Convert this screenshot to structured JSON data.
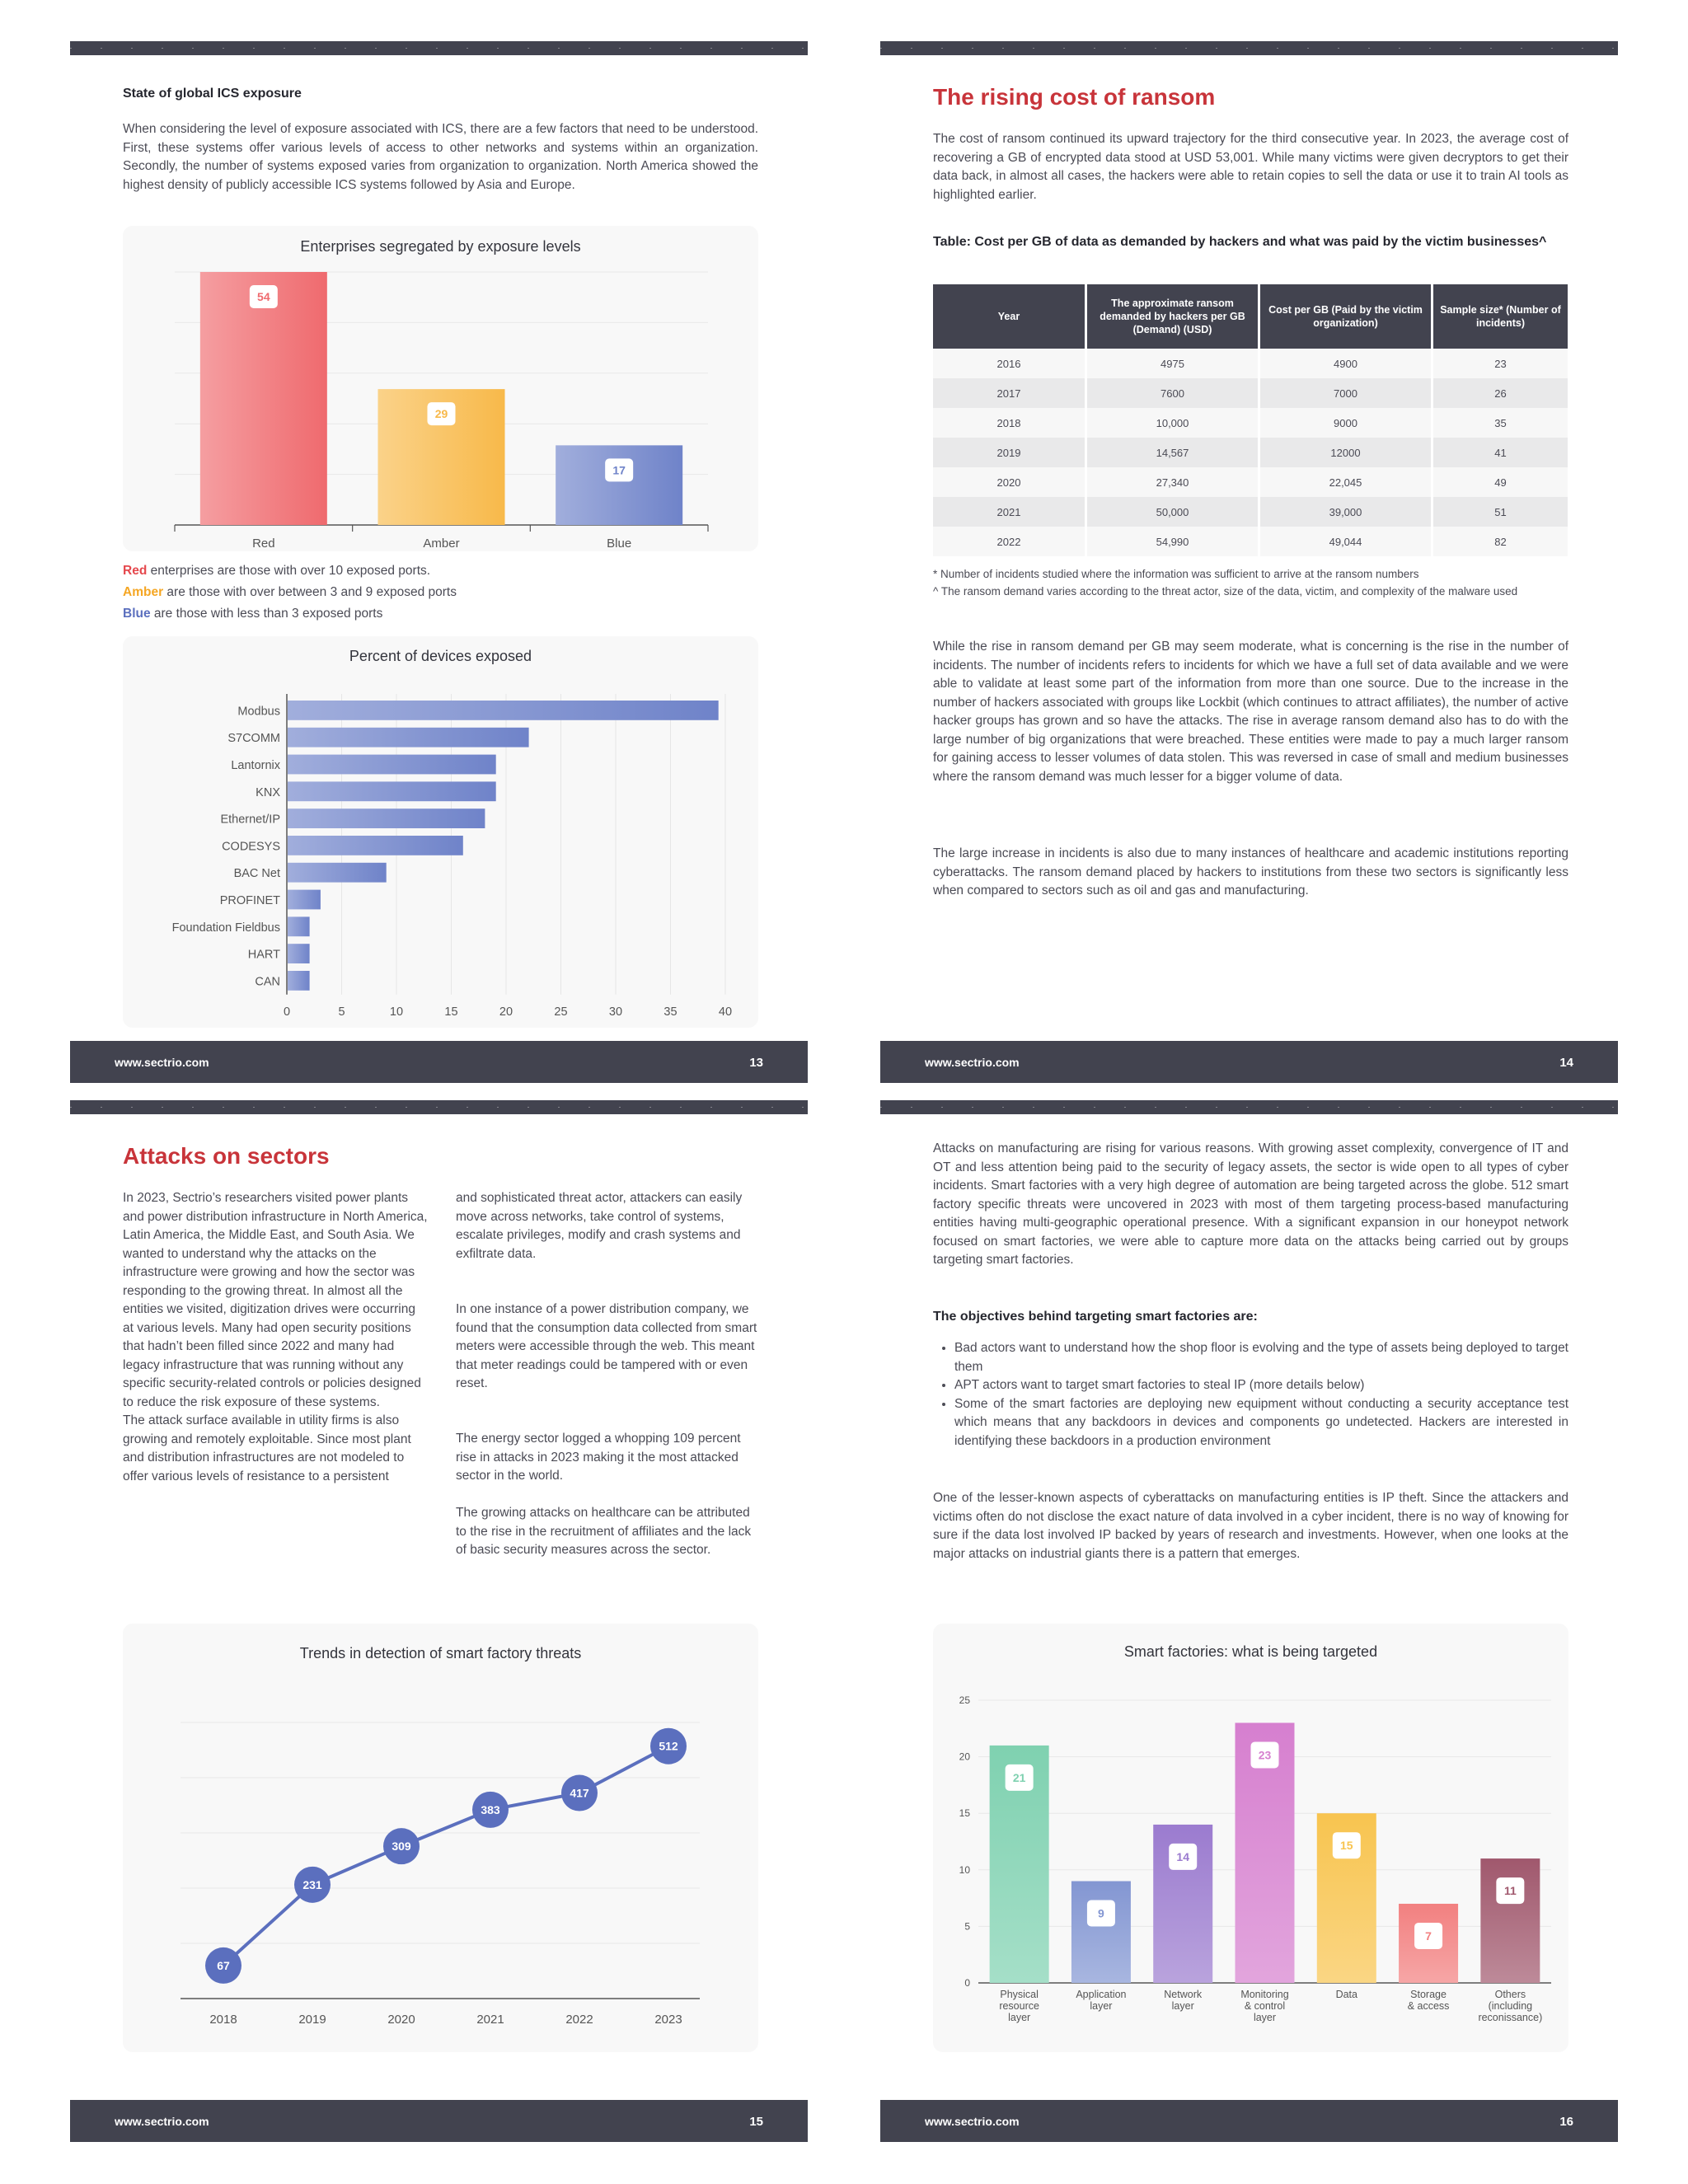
{
  "footer_url": "www.sectrio.com",
  "p13": {
    "page_num": "13",
    "subheading": "State of global ICS exposure",
    "intro": "When considering the level of exposure associated with ICS, there are a few factors that need to be understood. First, these systems offer various levels of access to other networks and systems within an organization. Secondly, the number of systems exposed varies from organization to organization. North America showed the highest density of publicly accessible ICS systems followed by Asia and Europe.",
    "legend": [
      {
        "word": "Red",
        "rest": " enterprises are those with over 10 exposed ports.",
        "color": "#e5484d"
      },
      {
        "word": "Amber",
        "rest": " are those with over between 3 and 9 exposed ports",
        "color": "#f5a623"
      },
      {
        "word": "Blue",
        "rest": " are those with less than 3 exposed ports",
        "color": "#5b6fbe"
      }
    ]
  },
  "p14": {
    "page_num": "14",
    "heading": "The rising cost of ransom",
    "intro": "The cost of ransom continued its upward trajectory for the third consecutive year. In 2023, the average cost of recovering a GB of encrypted data stood at USD 53,001. While many victims were given decryptors to get their data back, in almost all cases, the hackers were able to retain copies to sell the data or use it to train AI tools as highlighted earlier.",
    "table_caption": "Table: Cost per GB of data as demanded by hackers and what was paid by the victim businesses^",
    "table_headers": [
      "Year",
      "The approximate ransom demanded by hackers per GB (Demand) (USD)",
      "Cost per GB (Paid by the victim organization)",
      "Sample size* (Number of incidents)"
    ],
    "table_rows": [
      [
        "2016",
        "4975",
        "4900",
        "23"
      ],
      [
        "2017",
        "7600",
        "7000",
        "26"
      ],
      [
        "2018",
        "10,000",
        "9000",
        "35"
      ],
      [
        "2019",
        "14,567",
        "12000",
        "41"
      ],
      [
        "2020",
        "27,340",
        "22,045",
        "49"
      ],
      [
        "2021",
        "50,000",
        "39,000",
        "51"
      ],
      [
        "2022",
        "54,990",
        "49,044",
        "82"
      ]
    ],
    "note1": "* Number of incidents studied where the information was sufficient to arrive at the ransom numbers",
    "note2": "^ The ransom demand varies according to the threat actor, size of the data, victim, and complexity of the malware used",
    "para1": "While the rise in ransom demand per GB may seem moderate, what is concerning is the rise in the number of incidents. The number of incidents refers to incidents for which we have a full set of data available and we were able to validate at least some part of the information from more than one source. Due to the increase in the number of hackers associated with groups like Lockbit (which continues to attract affiliates), the number of active hacker groups has grown and so have the attacks. The rise in average ransom demand also has to do with the large number of big organizations that were breached. These entities were made to pay a much larger ransom for gaining access to lesser volumes of data stolen. This was reversed in case of small and medium businesses where the ransom demand was much lesser for a bigger volume of data.",
    "para2": "The large increase in incidents is also due to many instances of healthcare and academic institutions reporting cyberattacks. The ransom demand placed by hackers to institutions from these two sectors is significantly less when compared to sectors such as oil and gas and manufacturing."
  },
  "p15": {
    "page_num": "15",
    "heading": "Attacks on sectors",
    "col1_p1": "In 2023, Sectrio’s researchers visited power plants and power distribution infrastructure in North America, Latin America, the Middle East, and South Asia. We wanted to understand why the attacks on the infrastructure were growing and how the sector was responding to the growing threat. In almost all the entities we visited, digitization drives were occurring at various levels. Many had open security positions that hadn’t been filled since 2022 and many had legacy infrastructure that was running without any specific security-related controls or policies designed to reduce the risk exposure of these systems.",
    "col1_p2": "The attack surface available in utility firms is also growing and remotely exploitable. Since most plant and distribution infrastructures are not modeled to offer various levels of resistance to a persistent",
    "col2_p1": "and sophisticated threat actor, attackers can easily move across networks, take control of systems, escalate privileges, modify and crash systems and exfiltrate data.",
    "col2_p2": "In one instance of a power distribution company, we found that the consumption data collected from smart meters were accessible through the web. This meant that meter readings could be tampered with or even reset.",
    "col2_p3": "The energy sector logged a whopping 109 percent rise in attacks in 2023 making it the most attacked sector in the world.",
    "col2_p4": "The growing attacks on healthcare can be attributed to the rise in the recruitment of affiliates and the lack of basic security measures across the sector."
  },
  "p16": {
    "page_num": "16",
    "para1": "Attacks on manufacturing are rising for various reasons. With growing asset complexity, convergence of IT and OT and less attention being paid to the security of legacy assets, the sector is wide open to all types of cyber incidents. Smart factories with a very high degree of automation are being targeted across the globe. 512 smart factory specific threats were uncovered in 2023 with most of them targeting process-based manufacturing entities having multi-geographic operational presence. With a significant expansion in our honeypot network focused on smart factories, we were able to capture more data on the attacks being carried out by groups targeting smart factories.",
    "objectives_heading": "The objectives behind targeting smart factories are:",
    "bullets": [
      "Bad actors want to understand how the shop floor is evolving and the type of assets being deployed to target them",
      "APT actors want to target smart factories to steal IP (more details below)",
      "Some of the smart factories are deploying new equipment without conducting a security acceptance test which means that any backdoors in devices and components go undetected. Hackers are interested in identifying these backdoors in a production environment"
    ],
    "para2": "One of the lesser-known aspects of cyberattacks on manufacturing entities is IP theft. Since the attackers and victims often do not disclose the exact nature of data involved in a cyber incident, there is no way of knowing for sure if the data lost involved IP backed by years of research and investments. However, when one looks at the major attacks on industrial giants there is a pattern that emerges."
  },
  "chart_data": [
    {
      "type": "bar",
      "title": "Enterprises segregated by exposure levels",
      "categories": [
        "Red",
        "Amber",
        "Blue"
      ],
      "values": [
        54,
        29,
        17
      ],
      "colors": [
        "#ef6a6e",
        "#f8b94a",
        "#6f83c9"
      ],
      "ylim": [
        0,
        54
      ],
      "grid": true
    },
    {
      "type": "bar",
      "orientation": "horizontal",
      "title": "Percent of devices exposed",
      "categories": [
        "Modbus",
        "S7COMM",
        "Lantornix",
        "KNX",
        "Ethernet/IP",
        "CODESYS",
        "BAC Net",
        "PROFINET",
        "Foundation Fieldbus",
        "HART",
        "CAN"
      ],
      "values": [
        39.3,
        22,
        19,
        19,
        18,
        16,
        9,
        3,
        2,
        2,
        2
      ],
      "xticks": [
        0,
        5,
        10,
        15,
        20,
        25,
        30,
        35,
        40
      ],
      "xlim": [
        0,
        40
      ],
      "color": "#6f83c9",
      "grid": true
    },
    {
      "type": "line",
      "title": "Trends in detection of smart factory threats",
      "x": [
        "2018",
        "2019",
        "2020",
        "2021",
        "2022",
        "2023"
      ],
      "values": [
        67,
        231,
        309,
        383,
        417,
        512
      ],
      "color": "#5b6fbe",
      "grid": true
    },
    {
      "type": "bar",
      "title": "Smart factories: what is being targeted",
      "categories": [
        "Physical resource layer",
        "Application layer",
        "Network layer",
        "Monitoring & control layer",
        "Data",
        "Storage & access",
        "Others (including reconissance)"
      ],
      "category_lines": [
        [
          "Physical",
          "resource",
          "layer"
        ],
        [
          "Application",
          "layer"
        ],
        [
          "Network",
          "layer"
        ],
        [
          "Monitoring",
          "& control",
          "layer"
        ],
        [
          "Data"
        ],
        [
          "Storage",
          "& access"
        ],
        [
          "Others",
          "(including",
          "reconissance)"
        ]
      ],
      "values": [
        21,
        9,
        14,
        23,
        15,
        7,
        11
      ],
      "colors": [
        "#7fd1b0",
        "#8396d2",
        "#9b7bcf",
        "#d67fcf",
        "#f8c44f",
        "#f28080",
        "#a0586d"
      ],
      "yticks": [
        0,
        5,
        10,
        15,
        20,
        25
      ],
      "ylim": [
        0,
        25
      ],
      "grid": true
    }
  ]
}
